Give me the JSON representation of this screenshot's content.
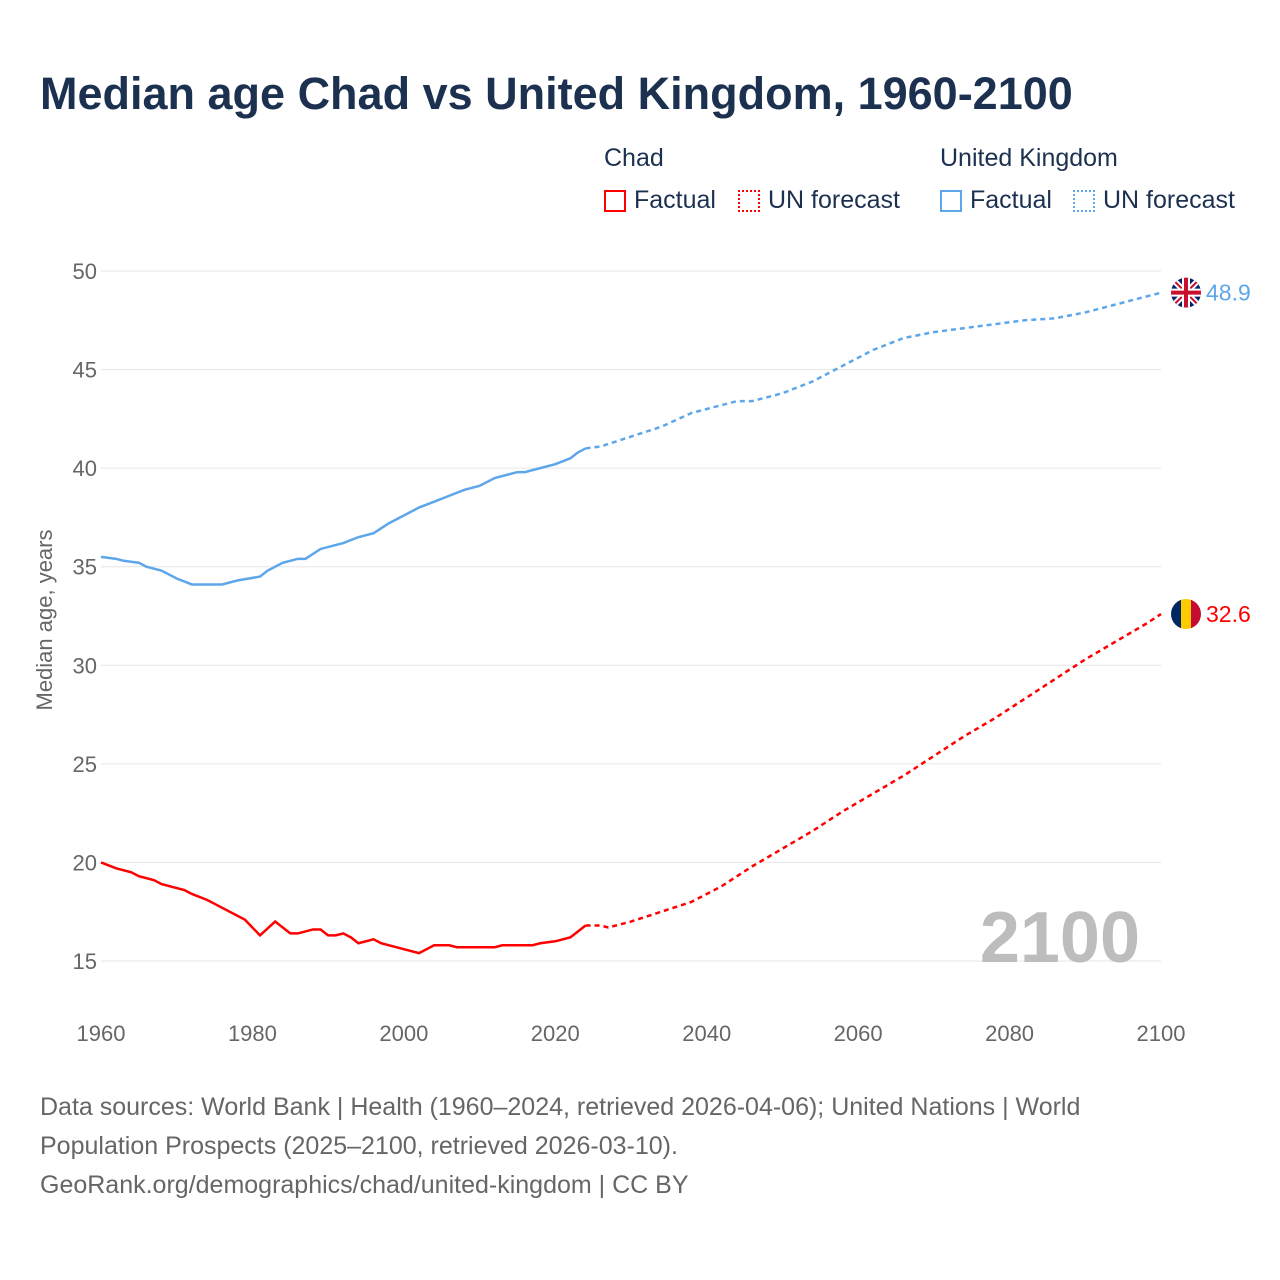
{
  "title": "Median age Chad vs United Kingdom, 1960-2100",
  "legend": {
    "chad": "Chad",
    "uk": "United Kingdom",
    "factual": "Factual",
    "forecast": "UN forecast"
  },
  "footer": {
    "line1": "Data sources: World Bank | Health (1960–2024, retrieved 2026-04-06); United Nations | World",
    "line2": "Population Prospects (2025–2100, retrieved 2026-03-10).",
    "line3": "GeoRank.org/demographics/chad/united-kingdom | CC BY"
  },
  "chart_data": {
    "type": "line",
    "title": "Median age Chad vs United Kingdom, 1960-2100",
    "xlabel": "",
    "ylabel": "Median age, years",
    "xlim": [
      1960,
      2100
    ],
    "ylim": [
      15,
      50
    ],
    "xticks": [
      1960,
      1980,
      2000,
      2020,
      2040,
      2060,
      2080,
      2100
    ],
    "yticks": [
      15,
      20,
      25,
      30,
      35,
      40,
      45,
      50
    ],
    "watermark": "2100",
    "series": [
      {
        "name": "United Kingdom",
        "color": "#5ea6ea",
        "end_label": "48.9",
        "factual": [
          [
            1960,
            35.5
          ],
          [
            1962,
            35.4
          ],
          [
            1963,
            35.3
          ],
          [
            1965,
            35.2
          ],
          [
            1966,
            35.0
          ],
          [
            1968,
            34.8
          ],
          [
            1970,
            34.4
          ],
          [
            1972,
            34.1
          ],
          [
            1976,
            34.1
          ],
          [
            1978,
            34.3
          ],
          [
            1981,
            34.5
          ],
          [
            1982,
            34.8
          ],
          [
            1984,
            35.2
          ],
          [
            1986,
            35.4
          ],
          [
            1987,
            35.4
          ],
          [
            1989,
            35.9
          ],
          [
            1992,
            36.2
          ],
          [
            1994,
            36.5
          ],
          [
            1996,
            36.7
          ],
          [
            1998,
            37.2
          ],
          [
            2000,
            37.6
          ],
          [
            2002,
            38.0
          ],
          [
            2004,
            38.3
          ],
          [
            2006,
            38.6
          ],
          [
            2008,
            38.9
          ],
          [
            2010,
            39.1
          ],
          [
            2012,
            39.5
          ],
          [
            2015,
            39.8
          ],
          [
            2016,
            39.8
          ],
          [
            2018,
            40.0
          ],
          [
            2020,
            40.2
          ],
          [
            2022,
            40.5
          ],
          [
            2023,
            40.8
          ],
          [
            2024,
            41.0
          ]
        ],
        "forecast": [
          [
            2024,
            41.0
          ],
          [
            2026,
            41.1
          ],
          [
            2030,
            41.6
          ],
          [
            2034,
            42.1
          ],
          [
            2038,
            42.8
          ],
          [
            2042,
            43.2
          ],
          [
            2044,
            43.4
          ],
          [
            2046,
            43.4
          ],
          [
            2050,
            43.8
          ],
          [
            2054,
            44.4
          ],
          [
            2058,
            45.2
          ],
          [
            2062,
            46.0
          ],
          [
            2066,
            46.6
          ],
          [
            2070,
            46.9
          ],
          [
            2074,
            47.1
          ],
          [
            2078,
            47.3
          ],
          [
            2082,
            47.5
          ],
          [
            2086,
            47.6
          ],
          [
            2090,
            47.9
          ],
          [
            2094,
            48.3
          ],
          [
            2098,
            48.7
          ],
          [
            2100,
            48.9
          ]
        ]
      },
      {
        "name": "Chad",
        "color": "#ff0000",
        "end_label": "32.6",
        "factual": [
          [
            1960,
            20.0
          ],
          [
            1962,
            19.7
          ],
          [
            1964,
            19.5
          ],
          [
            1965,
            19.3
          ],
          [
            1967,
            19.1
          ],
          [
            1968,
            18.9
          ],
          [
            1971,
            18.6
          ],
          [
            1972,
            18.4
          ],
          [
            1974,
            18.1
          ],
          [
            1975,
            17.9
          ],
          [
            1979,
            17.1
          ],
          [
            1981,
            16.3
          ],
          [
            1983,
            17.0
          ],
          [
            1985,
            16.4
          ],
          [
            1986,
            16.4
          ],
          [
            1988,
            16.6
          ],
          [
            1989,
            16.6
          ],
          [
            1990,
            16.3
          ],
          [
            1991,
            16.3
          ],
          [
            1992,
            16.4
          ],
          [
            1993,
            16.2
          ],
          [
            1994,
            15.9
          ],
          [
            1996,
            16.1
          ],
          [
            1997,
            15.9
          ],
          [
            2000,
            15.6
          ],
          [
            2002,
            15.4
          ],
          [
            2003,
            15.6
          ],
          [
            2004,
            15.8
          ],
          [
            2006,
            15.8
          ],
          [
            2007,
            15.7
          ],
          [
            2012,
            15.7
          ],
          [
            2013,
            15.8
          ],
          [
            2017,
            15.8
          ],
          [
            2018,
            15.9
          ],
          [
            2020,
            16.0
          ],
          [
            2022,
            16.2
          ],
          [
            2024,
            16.8
          ]
        ],
        "forecast": [
          [
            2024,
            16.8
          ],
          [
            2026,
            16.8
          ],
          [
            2027,
            16.7
          ],
          [
            2030,
            17.0
          ],
          [
            2034,
            17.5
          ],
          [
            2038,
            18.0
          ],
          [
            2042,
            18.8
          ],
          [
            2046,
            19.8
          ],
          [
            2050,
            20.7
          ],
          [
            2054,
            21.6
          ],
          [
            2058,
            22.6
          ],
          [
            2062,
            23.5
          ],
          [
            2066,
            24.4
          ],
          [
            2070,
            25.4
          ],
          [
            2074,
            26.4
          ],
          [
            2078,
            27.3
          ],
          [
            2082,
            28.3
          ],
          [
            2086,
            29.3
          ],
          [
            2090,
            30.3
          ],
          [
            2094,
            31.2
          ],
          [
            2098,
            32.1
          ],
          [
            2100,
            32.6
          ]
        ]
      }
    ]
  }
}
